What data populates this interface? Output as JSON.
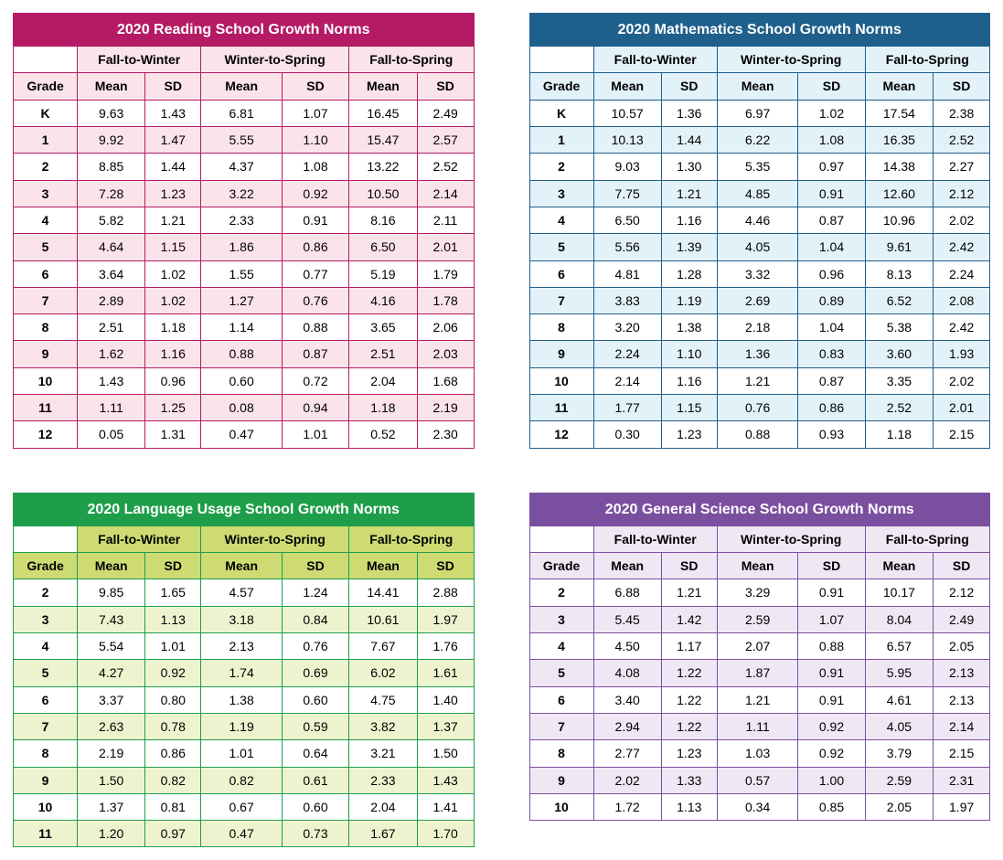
{
  "layout": {
    "columns": 2
  },
  "periods": [
    "Fall-to-Winter",
    "Winter-to-Spring",
    "Fall-to-Spring"
  ],
  "subheaders": [
    "Grade",
    "Mean",
    "SD",
    "Mean",
    "SD",
    "Mean",
    "SD"
  ],
  "tables": [
    {
      "title": "2020 Reading School Growth Norms",
      "colors": {
        "title_bg": "#b41b64",
        "tint": "#fbe3ea",
        "border": "#b41b64"
      },
      "rows": [
        [
          "K",
          "9.63",
          "1.43",
          "6.81",
          "1.07",
          "16.45",
          "2.49"
        ],
        [
          "1",
          "9.92",
          "1.47",
          "5.55",
          "1.10",
          "15.47",
          "2.57"
        ],
        [
          "2",
          "8.85",
          "1.44",
          "4.37",
          "1.08",
          "13.22",
          "2.52"
        ],
        [
          "3",
          "7.28",
          "1.23",
          "3.22",
          "0.92",
          "10.50",
          "2.14"
        ],
        [
          "4",
          "5.82",
          "1.21",
          "2.33",
          "0.91",
          "8.16",
          "2.11"
        ],
        [
          "5",
          "4.64",
          "1.15",
          "1.86",
          "0.86",
          "6.50",
          "2.01"
        ],
        [
          "6",
          "3.64",
          "1.02",
          "1.55",
          "0.77",
          "5.19",
          "1.79"
        ],
        [
          "7",
          "2.89",
          "1.02",
          "1.27",
          "0.76",
          "4.16",
          "1.78"
        ],
        [
          "8",
          "2.51",
          "1.18",
          "1.14",
          "0.88",
          "3.65",
          "2.06"
        ],
        [
          "9",
          "1.62",
          "1.16",
          "0.88",
          "0.87",
          "2.51",
          "2.03"
        ],
        [
          "10",
          "1.43",
          "0.96",
          "0.60",
          "0.72",
          "2.04",
          "1.68"
        ],
        [
          "11",
          "1.11",
          "1.25",
          "0.08",
          "0.94",
          "1.18",
          "2.19"
        ],
        [
          "12",
          "0.05",
          "1.31",
          "0.47",
          "1.01",
          "0.52",
          "2.30"
        ]
      ]
    },
    {
      "title": "2020 Mathematics School Growth Norms",
      "colors": {
        "title_bg": "#1f5f8b",
        "tint": "#e3f2f8",
        "border": "#1f5f8b"
      },
      "rows": [
        [
          "K",
          "10.57",
          "1.36",
          "6.97",
          "1.02",
          "17.54",
          "2.38"
        ],
        [
          "1",
          "10.13",
          "1.44",
          "6.22",
          "1.08",
          "16.35",
          "2.52"
        ],
        [
          "2",
          "9.03",
          "1.30",
          "5.35",
          "0.97",
          "14.38",
          "2.27"
        ],
        [
          "3",
          "7.75",
          "1.21",
          "4.85",
          "0.91",
          "12.60",
          "2.12"
        ],
        [
          "4",
          "6.50",
          "1.16",
          "4.46",
          "0.87",
          "10.96",
          "2.02"
        ],
        [
          "5",
          "5.56",
          "1.39",
          "4.05",
          "1.04",
          "9.61",
          "2.42"
        ],
        [
          "6",
          "4.81",
          "1.28",
          "3.32",
          "0.96",
          "8.13",
          "2.24"
        ],
        [
          "7",
          "3.83",
          "1.19",
          "2.69",
          "0.89",
          "6.52",
          "2.08"
        ],
        [
          "8",
          "3.20",
          "1.38",
          "2.18",
          "1.04",
          "5.38",
          "2.42"
        ],
        [
          "9",
          "2.24",
          "1.10",
          "1.36",
          "0.83",
          "3.60",
          "1.93"
        ],
        [
          "10",
          "2.14",
          "1.16",
          "1.21",
          "0.87",
          "3.35",
          "2.02"
        ],
        [
          "11",
          "1.77",
          "1.15",
          "0.76",
          "0.86",
          "2.52",
          "2.01"
        ],
        [
          "12",
          "0.30",
          "1.23",
          "0.88",
          "0.93",
          "1.18",
          "2.15"
        ]
      ]
    },
    {
      "title": "2020 Language Usage School Growth Norms",
      "colors": {
        "title_bg": "#1e9e4a",
        "tint": "#eef3cf",
        "border": "#1e9e4a",
        "period_bg": "#cddb72",
        "subhdr_bg": "#cddb72"
      },
      "rows": [
        [
          "2",
          "9.85",
          "1.65",
          "4.57",
          "1.24",
          "14.41",
          "2.88"
        ],
        [
          "3",
          "7.43",
          "1.13",
          "3.18",
          "0.84",
          "10.61",
          "1.97"
        ],
        [
          "4",
          "5.54",
          "1.01",
          "2.13",
          "0.76",
          "7.67",
          "1.76"
        ],
        [
          "5",
          "4.27",
          "0.92",
          "1.74",
          "0.69",
          "6.02",
          "1.61"
        ],
        [
          "6",
          "3.37",
          "0.80",
          "1.38",
          "0.60",
          "4.75",
          "1.40"
        ],
        [
          "7",
          "2.63",
          "0.78",
          "1.19",
          "0.59",
          "3.82",
          "1.37"
        ],
        [
          "8",
          "2.19",
          "0.86",
          "1.01",
          "0.64",
          "3.21",
          "1.50"
        ],
        [
          "9",
          "1.50",
          "0.82",
          "0.82",
          "0.61",
          "2.33",
          "1.43"
        ],
        [
          "10",
          "1.37",
          "0.81",
          "0.67",
          "0.60",
          "2.04",
          "1.41"
        ],
        [
          "11",
          "1.20",
          "0.97",
          "0.47",
          "0.73",
          "1.67",
          "1.70"
        ]
      ]
    },
    {
      "title": "2020 General Science School Growth Norms",
      "colors": {
        "title_bg": "#7b4fa0",
        "tint": "#efe7f4",
        "border": "#7b4fa0"
      },
      "rows": [
        [
          "2",
          "6.88",
          "1.21",
          "3.29",
          "0.91",
          "10.17",
          "2.12"
        ],
        [
          "3",
          "5.45",
          "1.42",
          "2.59",
          "1.07",
          "8.04",
          "2.49"
        ],
        [
          "4",
          "4.50",
          "1.17",
          "2.07",
          "0.88",
          "6.57",
          "2.05"
        ],
        [
          "5",
          "4.08",
          "1.22",
          "1.87",
          "0.91",
          "5.95",
          "2.13"
        ],
        [
          "6",
          "3.40",
          "1.22",
          "1.21",
          "0.91",
          "4.61",
          "2.13"
        ],
        [
          "7",
          "2.94",
          "1.22",
          "1.11",
          "0.92",
          "4.05",
          "2.14"
        ],
        [
          "8",
          "2.77",
          "1.23",
          "1.03",
          "0.92",
          "3.79",
          "2.15"
        ],
        [
          "9",
          "2.02",
          "1.33",
          "0.57",
          "1.00",
          "2.59",
          "2.31"
        ],
        [
          "10",
          "1.72",
          "1.13",
          "0.34",
          "0.85",
          "2.05",
          "1.97"
        ]
      ]
    }
  ]
}
